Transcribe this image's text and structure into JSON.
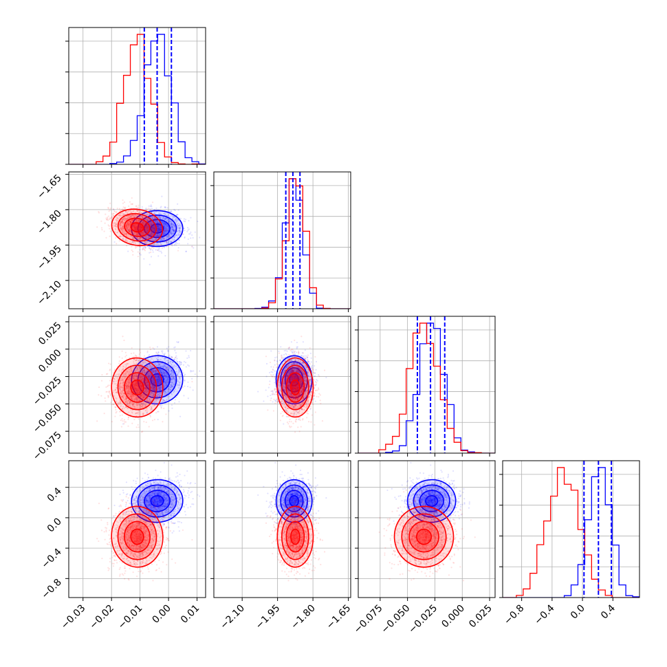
{
  "colors": {
    "series_a": "#0000ff",
    "series_b": "#ff0000"
  },
  "chart_data": {
    "type": "corner",
    "title": "",
    "grid": true,
    "dimensions": 4,
    "axes": [
      {
        "range": [
          -0.035,
          0.013
        ],
        "ticks": [
          -0.03,
          -0.02,
          -0.01,
          0.0,
          0.01
        ],
        "tick_labels": [
          "−0.03",
          "−0.02",
          "−0.01",
          "0.00",
          "0.01"
        ]
      },
      {
        "range": [
          -2.22,
          -1.64
        ],
        "ticks": [
          -2.1,
          -1.95,
          -1.8,
          -1.65
        ],
        "tick_labels": [
          "−2.10",
          "−1.95",
          "−1.80",
          "−1.65"
        ]
      },
      {
        "range": [
          -0.095,
          0.03
        ],
        "ticks": [
          -0.075,
          -0.05,
          -0.025,
          0.0,
          0.025
        ],
        "tick_labels": [
          "−0.075",
          "−0.050",
          "−0.025",
          "0.000",
          "0.025"
        ]
      },
      {
        "range": [
          -1.05,
          0.75
        ],
        "ticks": [
          -0.8,
          -0.4,
          0.0,
          0.4
        ],
        "tick_labels": [
          "−0.8",
          "−0.4",
          "0.0",
          "0.4"
        ]
      }
    ],
    "series": [
      {
        "color": "#0000ff",
        "mean": [
          -0.004,
          -1.88,
          -0.028,
          0.22
        ],
        "sd": [
          0.0045,
          0.038,
          0.011,
          0.14
        ],
        "corr": [
          [
            1,
            0,
            0.3,
            0.1
          ],
          [
            0,
            1,
            0,
            0
          ],
          [
            0.3,
            0,
            1,
            0.1
          ],
          [
            0.1,
            0,
            0.1,
            1
          ]
        ]
      },
      {
        "color": "#ff0000",
        "mean": [
          -0.011,
          -1.875,
          -0.035,
          -0.25
        ],
        "sd": [
          0.0045,
          0.038,
          0.0135,
          0.2
        ],
        "corr": [
          [
            1,
            -0.3,
            0.1,
            0.1
          ],
          [
            -0.3,
            1,
            0,
            0
          ],
          [
            0.1,
            0,
            1,
            0.1
          ],
          [
            0.1,
            0,
            0.1,
            1
          ]
        ]
      }
    ],
    "quantile_lines": [
      [
        -0.0085,
        -0.004,
        0.001
      ],
      [
        -1.915,
        -1.885,
        -1.855
      ],
      [
        -0.041,
        -0.029,
        -0.016
      ],
      [
        0.02,
        0.21,
        0.38
      ]
    ]
  }
}
